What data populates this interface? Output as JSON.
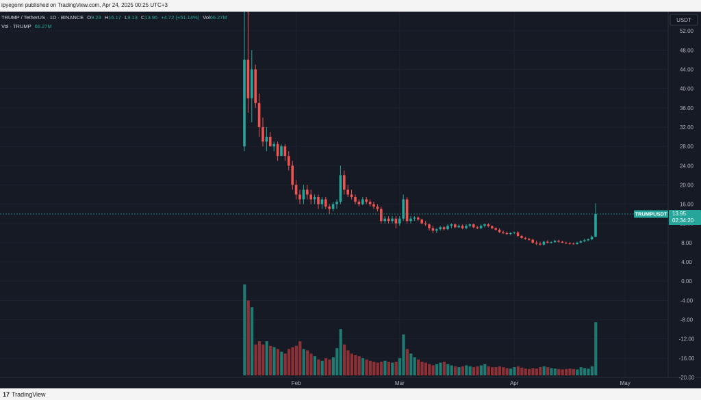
{
  "header": {
    "publish_line": "ipyegonn published on TradingView.com, Apr 24, 2025 00:25 UTC+3"
  },
  "legend": {
    "symbol": "TRUMP / TetherUS · 1D · BINANCE",
    "o_label": "O",
    "o_value": "9.23",
    "h_label": "H",
    "h_value": "16.17",
    "l_label": "L",
    "l_value": "9.13",
    "c_label": "C",
    "c_value": "13.95",
    "change": "+4.72 (+51.14%)",
    "vol_label": "Vol",
    "vol_value": "66.27M",
    "vol_line_label": "Vol · TRUMP",
    "vol_line_value": "66.27M"
  },
  "price_axis": {
    "currency": "USDT"
  },
  "last_price": {
    "symbol": "TRUMPUSDT",
    "value": "13.95",
    "countdown": "02:34:20"
  },
  "footer": {
    "brand": "TradingView"
  },
  "colors": {
    "up": "#26a69a",
    "down": "#ef5350",
    "up_vol": "#1f7a71",
    "down_vol": "#8e3137",
    "background": "#161a25"
  },
  "chart_data": {
    "type": "candlestick",
    "ylim": [
      -20,
      56
    ],
    "y_ticks": [
      "52.00",
      "48.00",
      "44.00",
      "40.00",
      "36.00",
      "32.00",
      "28.00",
      "24.00",
      "20.00",
      "16.00",
      "12.00",
      "8.00",
      "4.00",
      "0.00",
      "-4.00",
      "-8.00",
      "-12.00",
      "-16.00",
      "-20.00"
    ],
    "x_ticks": [
      "Feb",
      "Mar",
      "Apr",
      "May"
    ],
    "candles": [
      {
        "date": "2025-01-18",
        "o": 28,
        "h": 73,
        "l": 27,
        "c": 46
      },
      {
        "date": "2025-01-19",
        "o": 46,
        "h": 58,
        "l": 35,
        "c": 38
      },
      {
        "date": "2025-01-20",
        "o": 38,
        "h": 48,
        "l": 33,
        "c": 44
      },
      {
        "date": "2025-01-21",
        "o": 44,
        "h": 45,
        "l": 36,
        "c": 37
      },
      {
        "date": "2025-01-22",
        "o": 37,
        "h": 39,
        "l": 30,
        "c": 32
      },
      {
        "date": "2025-01-23",
        "o": 32,
        "h": 34,
        "l": 28,
        "c": 29
      },
      {
        "date": "2025-01-24",
        "o": 29,
        "h": 32,
        "l": 27,
        "c": 30
      },
      {
        "date": "2025-01-25",
        "o": 30,
        "h": 31,
        "l": 28,
        "c": 28
      },
      {
        "date": "2025-01-26",
        "o": 28,
        "h": 29,
        "l": 27,
        "c": 28.5
      },
      {
        "date": "2025-01-27",
        "o": 28.5,
        "h": 29,
        "l": 25,
        "c": 26
      },
      {
        "date": "2025-01-28",
        "o": 26,
        "h": 28.5,
        "l": 26,
        "c": 28
      },
      {
        "date": "2025-01-29",
        "o": 28,
        "h": 28.5,
        "l": 25,
        "c": 26
      },
      {
        "date": "2025-01-30",
        "o": 26,
        "h": 27,
        "l": 23,
        "c": 24
      },
      {
        "date": "2025-01-31",
        "o": 24,
        "h": 25,
        "l": 19,
        "c": 20
      },
      {
        "date": "2025-02-01",
        "o": 20,
        "h": 21,
        "l": 17,
        "c": 18
      },
      {
        "date": "2025-02-02",
        "o": 18,
        "h": 19,
        "l": 16,
        "c": 17
      },
      {
        "date": "2025-02-03",
        "o": 17,
        "h": 20,
        "l": 16,
        "c": 19
      },
      {
        "date": "2025-02-04",
        "o": 19,
        "h": 20,
        "l": 17,
        "c": 18
      },
      {
        "date": "2025-02-05",
        "o": 18,
        "h": 19,
        "l": 16,
        "c": 17
      },
      {
        "date": "2025-02-06",
        "o": 17,
        "h": 18,
        "l": 16,
        "c": 17.5
      },
      {
        "date": "2025-02-07",
        "o": 17.5,
        "h": 18,
        "l": 15,
        "c": 16
      },
      {
        "date": "2025-02-08",
        "o": 16,
        "h": 17.5,
        "l": 15,
        "c": 17
      },
      {
        "date": "2025-02-09",
        "o": 17,
        "h": 17.5,
        "l": 15,
        "c": 15.5
      },
      {
        "date": "2025-02-10",
        "o": 15.5,
        "h": 16,
        "l": 14,
        "c": 15
      },
      {
        "date": "2025-02-11",
        "o": 15,
        "h": 16.5,
        "l": 14.5,
        "c": 16
      },
      {
        "date": "2025-02-12",
        "o": 16,
        "h": 17,
        "l": 15,
        "c": 16.5
      },
      {
        "date": "2025-02-13",
        "o": 16.5,
        "h": 24,
        "l": 16,
        "c": 22
      },
      {
        "date": "2025-02-14",
        "o": 22,
        "h": 23,
        "l": 18,
        "c": 19
      },
      {
        "date": "2025-02-15",
        "o": 19,
        "h": 20,
        "l": 17.5,
        "c": 18
      },
      {
        "date": "2025-02-16",
        "o": 18,
        "h": 19,
        "l": 17,
        "c": 17.5
      },
      {
        "date": "2025-02-17",
        "o": 17.5,
        "h": 18,
        "l": 16,
        "c": 16.5
      },
      {
        "date": "2025-02-18",
        "o": 16.5,
        "h": 17,
        "l": 15.5,
        "c": 16
      },
      {
        "date": "2025-02-19",
        "o": 16,
        "h": 17.5,
        "l": 15.8,
        "c": 17
      },
      {
        "date": "2025-02-20",
        "o": 17,
        "h": 17.5,
        "l": 16,
        "c": 16.5
      },
      {
        "date": "2025-02-21",
        "o": 16.5,
        "h": 17,
        "l": 15.5,
        "c": 16
      },
      {
        "date": "2025-02-22",
        "o": 16,
        "h": 16.5,
        "l": 15,
        "c": 15.5
      },
      {
        "date": "2025-02-23",
        "o": 15.5,
        "h": 16,
        "l": 14.5,
        "c": 15
      },
      {
        "date": "2025-02-24",
        "o": 15,
        "h": 15.5,
        "l": 12,
        "c": 12.5
      },
      {
        "date": "2025-02-25",
        "o": 12.5,
        "h": 13.5,
        "l": 12,
        "c": 13
      },
      {
        "date": "2025-02-26",
        "o": 13,
        "h": 13.5,
        "l": 12,
        "c": 12.5
      },
      {
        "date": "2025-02-27",
        "o": 12.5,
        "h": 13.5,
        "l": 12,
        "c": 13
      },
      {
        "date": "2025-02-28",
        "o": 13,
        "h": 13.5,
        "l": 11,
        "c": 12
      },
      {
        "date": "2025-03-01",
        "o": 12,
        "h": 13.5,
        "l": 11.5,
        "c": 13
      },
      {
        "date": "2025-03-02",
        "o": 13,
        "h": 18,
        "l": 12.5,
        "c": 17
      },
      {
        "date": "2025-03-03",
        "o": 17,
        "h": 17.5,
        "l": 12,
        "c": 12.5
      },
      {
        "date": "2025-03-04",
        "o": 12.5,
        "h": 13.5,
        "l": 12,
        "c": 13
      },
      {
        "date": "2025-03-05",
        "o": 13,
        "h": 13.5,
        "l": 12.5,
        "c": 13.2
      },
      {
        "date": "2025-03-06",
        "o": 13.2,
        "h": 13.5,
        "l": 12.5,
        "c": 12.8
      },
      {
        "date": "2025-03-07",
        "o": 12.8,
        "h": 13,
        "l": 11.8,
        "c": 12
      },
      {
        "date": "2025-03-08",
        "o": 12,
        "h": 12.5,
        "l": 11.5,
        "c": 11.8
      },
      {
        "date": "2025-03-09",
        "o": 11.8,
        "h": 12,
        "l": 10.5,
        "c": 11
      },
      {
        "date": "2025-03-10",
        "o": 11,
        "h": 11.5,
        "l": 10,
        "c": 10.5
      },
      {
        "date": "2025-03-11",
        "o": 10.5,
        "h": 11,
        "l": 10,
        "c": 10.8
      },
      {
        "date": "2025-03-12",
        "o": 10.8,
        "h": 11.5,
        "l": 10.5,
        "c": 11.2
      },
      {
        "date": "2025-03-13",
        "o": 11.2,
        "h": 11.5,
        "l": 10.5,
        "c": 10.8
      },
      {
        "date": "2025-03-14",
        "o": 10.8,
        "h": 11.8,
        "l": 10.6,
        "c": 11.5
      },
      {
        "date": "2025-03-15",
        "o": 11.5,
        "h": 12,
        "l": 11,
        "c": 11.8
      },
      {
        "date": "2025-03-16",
        "o": 11.8,
        "h": 12,
        "l": 11,
        "c": 11.2
      },
      {
        "date": "2025-03-17",
        "o": 11.2,
        "h": 11.8,
        "l": 11,
        "c": 11.5
      },
      {
        "date": "2025-03-18",
        "o": 11.5,
        "h": 11.8,
        "l": 10.8,
        "c": 11
      },
      {
        "date": "2025-03-19",
        "o": 11,
        "h": 11.8,
        "l": 10.8,
        "c": 11.5
      },
      {
        "date": "2025-03-20",
        "o": 11.5,
        "h": 12,
        "l": 11.2,
        "c": 11.8
      },
      {
        "date": "2025-03-21",
        "o": 11.8,
        "h": 12,
        "l": 11,
        "c": 11.2
      },
      {
        "date": "2025-03-22",
        "o": 11.2,
        "h": 11.5,
        "l": 10.8,
        "c": 11
      },
      {
        "date": "2025-03-23",
        "o": 11,
        "h": 11.8,
        "l": 10.8,
        "c": 11.5
      },
      {
        "date": "2025-03-24",
        "o": 11.5,
        "h": 12,
        "l": 11.2,
        "c": 11.8
      },
      {
        "date": "2025-03-25",
        "o": 11.8,
        "h": 12,
        "l": 11.2,
        "c": 11.4
      },
      {
        "date": "2025-03-26",
        "o": 11.4,
        "h": 11.6,
        "l": 10.8,
        "c": 11
      },
      {
        "date": "2025-03-27",
        "o": 11,
        "h": 11.2,
        "l": 10.5,
        "c": 10.7
      },
      {
        "date": "2025-03-28",
        "o": 10.7,
        "h": 11,
        "l": 10,
        "c": 10.2
      },
      {
        "date": "2025-03-29",
        "o": 10.2,
        "h": 10.5,
        "l": 9.8,
        "c": 10
      },
      {
        "date": "2025-03-30",
        "o": 10,
        "h": 10.3,
        "l": 9.6,
        "c": 9.8
      },
      {
        "date": "2025-03-31",
        "o": 9.8,
        "h": 10.2,
        "l": 9.5,
        "c": 10
      },
      {
        "date": "2025-04-01",
        "o": 10,
        "h": 10.3,
        "l": 9.8,
        "c": 10.1
      },
      {
        "date": "2025-04-02",
        "o": 10.1,
        "h": 10.4,
        "l": 9.2,
        "c": 9.4
      },
      {
        "date": "2025-04-03",
        "o": 9.4,
        "h": 9.6,
        "l": 8.8,
        "c": 9
      },
      {
        "date": "2025-04-04",
        "o": 9,
        "h": 9.2,
        "l": 8.6,
        "c": 8.8
      },
      {
        "date": "2025-04-05",
        "o": 8.8,
        "h": 9,
        "l": 8.4,
        "c": 8.6
      },
      {
        "date": "2025-04-06",
        "o": 8.6,
        "h": 8.8,
        "l": 7.8,
        "c": 8
      },
      {
        "date": "2025-04-07",
        "o": 8,
        "h": 8.4,
        "l": 7.5,
        "c": 7.8
      },
      {
        "date": "2025-04-08",
        "o": 7.8,
        "h": 8.2,
        "l": 7.4,
        "c": 7.6
      },
      {
        "date": "2025-04-09",
        "o": 7.6,
        "h": 8.4,
        "l": 7.4,
        "c": 8.2
      },
      {
        "date": "2025-04-10",
        "o": 8.2,
        "h": 8.5,
        "l": 7.8,
        "c": 8
      },
      {
        "date": "2025-04-11",
        "o": 8,
        "h": 8.3,
        "l": 7.8,
        "c": 8.1
      },
      {
        "date": "2025-04-12",
        "o": 8.1,
        "h": 8.6,
        "l": 8,
        "c": 8.4
      },
      {
        "date": "2025-04-13",
        "o": 8.4,
        "h": 8.6,
        "l": 8,
        "c": 8.2
      },
      {
        "date": "2025-04-14",
        "o": 8.2,
        "h": 8.4,
        "l": 7.9,
        "c": 8
      },
      {
        "date": "2025-04-15",
        "o": 8,
        "h": 8.2,
        "l": 7.7,
        "c": 7.9
      },
      {
        "date": "2025-04-16",
        "o": 7.9,
        "h": 8.1,
        "l": 7.6,
        "c": 7.8
      },
      {
        "date": "2025-04-17",
        "o": 7.8,
        "h": 8,
        "l": 7.6,
        "c": 7.7
      },
      {
        "date": "2025-04-18",
        "o": 7.7,
        "h": 8.2,
        "l": 7.6,
        "c": 8
      },
      {
        "date": "2025-04-19",
        "o": 8,
        "h": 8.5,
        "l": 7.9,
        "c": 8.3
      },
      {
        "date": "2025-04-20",
        "o": 8.3,
        "h": 8.8,
        "l": 8.1,
        "c": 8.5
      },
      {
        "date": "2025-04-21",
        "o": 8.5,
        "h": 8.9,
        "l": 8.3,
        "c": 8.7
      },
      {
        "date": "2025-04-22",
        "o": 8.7,
        "h": 9.5,
        "l": 8.5,
        "c": 9.23
      },
      {
        "date": "2025-04-23",
        "o": 9.23,
        "h": 16.17,
        "l": 9.13,
        "c": 13.95
      }
    ],
    "volume": [
      200,
      165,
      150,
      68,
      75,
      68,
      75,
      65,
      62,
      58,
      52,
      48,
      58,
      62,
      65,
      75,
      58,
      55,
      48,
      42,
      35,
      32,
      38,
      35,
      40,
      60,
      102,
      68,
      55,
      48,
      45,
      42,
      38,
      35,
      32,
      30,
      28,
      30,
      32,
      30,
      28,
      30,
      38,
      90,
      58,
      48,
      40,
      35,
      30,
      28,
      25,
      22,
      25,
      28,
      30,
      25,
      22,
      20,
      18,
      20,
      22,
      20,
      18,
      20,
      22,
      25,
      20,
      18,
      18,
      20,
      18,
      16,
      15,
      18,
      20,
      17,
      15,
      14,
      16,
      15,
      18,
      20,
      18,
      16,
      15,
      14,
      13,
      14,
      15,
      14,
      13,
      18,
      16,
      15,
      20,
      117
    ],
    "volume_visible_range": [
      0,
      200
    ]
  }
}
